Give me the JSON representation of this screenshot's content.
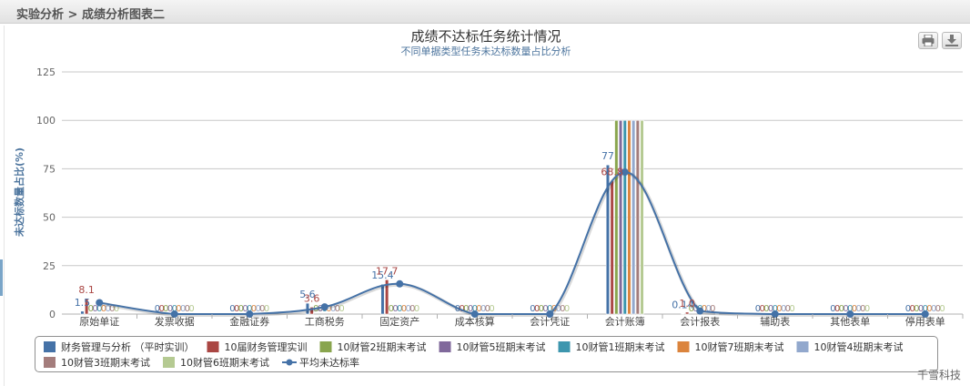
{
  "breadcrumb": {
    "text": "实验分析 > 成绩分析图表二"
  },
  "toolbar": {
    "print_icon": "printer-icon",
    "export_icon": "download-icon"
  },
  "watermark": "千雪科技",
  "chart_data": {
    "type": "bar",
    "title": "成绩不达标任务统计情况",
    "subtitle": "不同单据类型任务未达标数量占比分析",
    "xlabel": "",
    "ylabel": "未达标数量占比(%)",
    "ylim": [
      0,
      125
    ],
    "yticks": [
      0,
      25,
      50,
      75,
      100,
      125
    ],
    "grid": true,
    "legend_position": "bottom",
    "categories": [
      "原始单证",
      "发票收据",
      "金融证券",
      "工商税务",
      "固定资产",
      "成本核算",
      "会计凭证",
      "会计账簿",
      "会计报表",
      "辅助表",
      "其他表单",
      "停用表单"
    ],
    "series": [
      {
        "name": "财务管理与分析 （平时实训）",
        "color": "#4572a7",
        "values": [
          1.5,
          0,
          0,
          5.6,
          15.4,
          0,
          0,
          77,
          0.14,
          0,
          0,
          0
        ]
      },
      {
        "name": "10届财务管理实训",
        "color": "#aa4643",
        "values": [
          8.1,
          0,
          0,
          3.6,
          17.7,
          0,
          0,
          68.8,
          1.0,
          0,
          0,
          0
        ]
      },
      {
        "name": "10财管2班期末考试",
        "color": "#89a54e",
        "values": [
          0,
          0,
          0,
          0,
          0,
          0,
          0,
          100,
          0,
          0,
          0,
          0
        ]
      },
      {
        "name": "10财管5班期末考试",
        "color": "#80699b",
        "values": [
          0,
          0,
          0,
          0,
          0,
          0,
          0,
          100,
          0,
          0,
          0,
          0
        ]
      },
      {
        "name": "10财管1班期末考试",
        "color": "#3d96ae",
        "values": [
          0,
          0,
          0,
          0,
          0,
          0,
          0,
          100,
          0,
          0,
          0,
          0
        ]
      },
      {
        "name": "10财管7班期末考试",
        "color": "#db843d",
        "values": [
          0,
          0,
          0,
          0,
          0,
          0,
          0,
          100,
          0,
          0,
          0,
          0
        ]
      },
      {
        "name": "10财管4班期末考试",
        "color": "#92a8cd",
        "values": [
          0,
          0,
          0,
          0,
          0,
          0,
          0,
          100,
          0,
          0,
          0,
          0
        ]
      },
      {
        "name": "10财管3班期末考试",
        "color": "#a47d7c",
        "values": [
          0,
          0,
          0,
          0,
          0,
          0,
          0,
          100,
          0,
          0,
          0,
          0
        ]
      },
      {
        "name": "10财管6班期末考试",
        "color": "#b5ca92",
        "values": [
          0,
          0,
          0,
          0,
          0,
          0,
          0,
          100,
          0.3,
          0,
          0,
          0
        ]
      }
    ],
    "average_line": {
      "name": "平均未达标率",
      "color": "#4572a7",
      "values": [
        5.9,
        0,
        0,
        3.7,
        15.6,
        0,
        0,
        73.3,
        1.6,
        0,
        0,
        0
      ]
    },
    "data_labels": [
      {
        "category_index": 0,
        "series_index": 0,
        "text": "1.5"
      },
      {
        "category_index": 0,
        "series_index": 1,
        "text": "8.1"
      },
      {
        "category_index": 3,
        "series_index": 0,
        "text": "5.6"
      },
      {
        "category_index": 3,
        "series_index": 1,
        "text": "3.6"
      },
      {
        "category_index": 4,
        "series_index": 0,
        "text": "15.4"
      },
      {
        "category_index": 4,
        "series_index": 1,
        "text": "17.7"
      },
      {
        "category_index": 7,
        "series_index": 0,
        "text": "77"
      },
      {
        "category_index": 7,
        "series_index": 1,
        "text": "68.8"
      },
      {
        "category_index": 8,
        "series_index": 0,
        "text": "0.14"
      },
      {
        "category_index": 8,
        "series_index": 1,
        "text": "1.0"
      }
    ]
  }
}
